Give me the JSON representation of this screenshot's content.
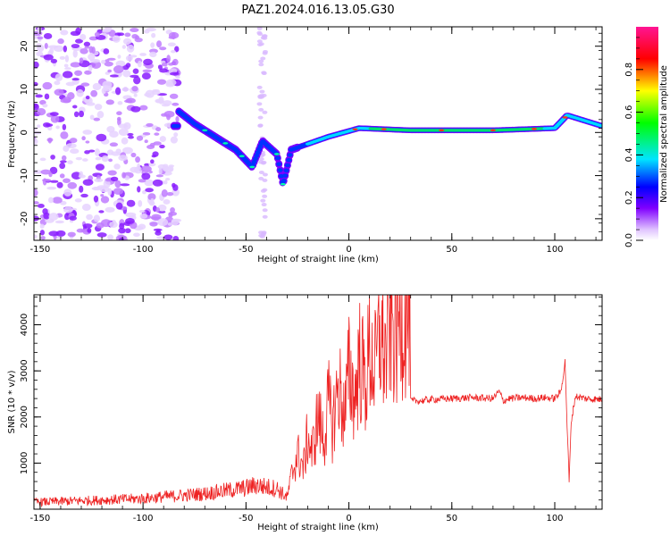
{
  "figure": {
    "title": "PAZ1.2024.016.13.05.G30"
  },
  "chart_data": [
    {
      "type": "heatmap",
      "xlabel": "Height of straight line (km)",
      "ylabel": "Frequency (Hz)",
      "xlim": [
        -153,
        123
      ],
      "ylim": [
        -25,
        24.5
      ],
      "xticks": [
        -150,
        -100,
        -50,
        0,
        50,
        100
      ],
      "yticks": [
        -20,
        -10,
        0,
        10,
        20
      ],
      "grid": false,
      "colorbar": {
        "label": "Normalized spectral amplitude",
        "ticks": [
          0.0,
          0.2,
          0.4,
          0.6,
          0.8
        ],
        "range": [
          0,
          1
        ],
        "colormap": "gist_ncar-like",
        "colors": [
          "#ffffff",
          "#8000ff",
          "#0000ff",
          "#00e5ff",
          "#00ff00",
          "#ffff00",
          "#ff0000",
          "#ff1493"
        ]
      },
      "trace": [
        {
          "x": -83,
          "y": 5
        },
        {
          "x": -75,
          "y": 2
        },
        {
          "x": -65,
          "y": -1
        },
        {
          "x": -55,
          "y": -4
        },
        {
          "x": -47,
          "y": -8
        },
        {
          "x": -42,
          "y": -2
        },
        {
          "x": -35,
          "y": -5
        },
        {
          "x": -32,
          "y": -12
        },
        {
          "x": -28,
          "y": -4
        },
        {
          "x": -10,
          "y": -1
        },
        {
          "x": 5,
          "y": 1
        },
        {
          "x": 30,
          "y": 0.5
        },
        {
          "x": 70,
          "y": 0.5
        },
        {
          "x": 100,
          "y": 1
        },
        {
          "x": 106,
          "y": 4
        },
        {
          "x": 123,
          "y": 1.5
        }
      ]
    },
    {
      "type": "line",
      "xlabel": "Height of straight line (km)",
      "ylabel": "SNR (10 * v/v)",
      "xlim": [
        -153,
        123
      ],
      "ylim": [
        0,
        4650
      ],
      "xticks": [
        -150,
        -100,
        -50,
        0,
        50,
        100
      ],
      "yticks": [
        1000,
        2000,
        3000,
        4000
      ],
      "grid": false,
      "line_color": "#ee2222",
      "series": [
        {
          "x": [
            -153,
            -140,
            -120,
            -100,
            -90,
            -80,
            -70,
            -60,
            -50,
            -45,
            -40,
            -35,
            -30,
            -28,
            -25,
            -22,
            -20,
            -18,
            -15,
            -12,
            -10,
            -8,
            -5,
            -2,
            0,
            3,
            5,
            8,
            10,
            13,
            15,
            18,
            20,
            23,
            25,
            28,
            29.5,
            30,
            35,
            40,
            50,
            60,
            70,
            73,
            75,
            78,
            85,
            90,
            95,
            100,
            103,
            105,
            106,
            107,
            108,
            110,
            115,
            123
          ],
          "y": [
            150,
            170,
            200,
            230,
            270,
            300,
            340,
            400,
            460,
            520,
            480,
            450,
            250,
            700,
            1200,
            900,
            1600,
            1200,
            2000,
            1500,
            2300,
            1800,
            2700,
            2000,
            3000,
            2400,
            3300,
            2700,
            3400,
            3000,
            3800,
            3300,
            4100,
            3700,
            4300,
            4200,
            4500,
            2350,
            2350,
            2380,
            2400,
            2420,
            2400,
            2550,
            2350,
            2400,
            2420,
            2400,
            2420,
            2400,
            2550,
            3200,
            1800,
            600,
            1900,
            2450,
            2400,
            2380
          ]
        }
      ]
    }
  ]
}
